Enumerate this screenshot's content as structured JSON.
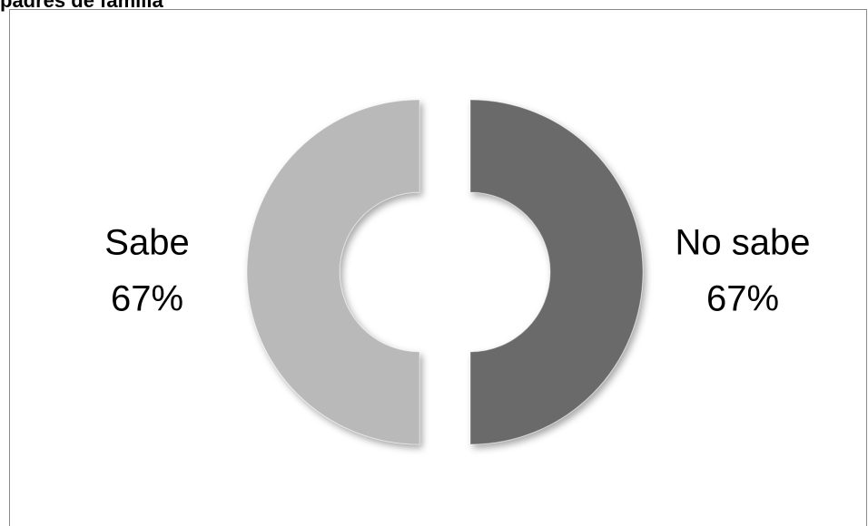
{
  "chart_data": {
    "type": "donut",
    "title": "padres de familia",
    "categories": [
      "No sabe",
      "Sabe"
    ],
    "values": [
      67,
      67
    ],
    "value_labels": [
      "67%",
      "67%"
    ],
    "colors": [
      "#6b6b6b",
      "#b9b9b9"
    ]
  }
}
